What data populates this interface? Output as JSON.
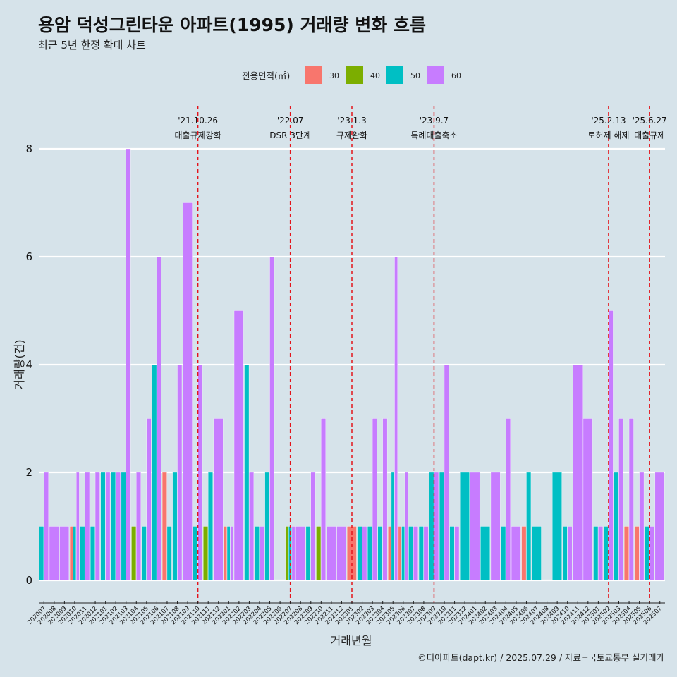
{
  "title": "용암 덕성그린타운 아파트(1995) 거래량 변화 흐름",
  "subtitle": "최근 5년 한정 확대 차트",
  "credit": "©디아파트(dapt.kr) / 2025.07.29 / 자료=국토교통부 실거래가",
  "chart_data": {
    "type": "bar",
    "stacking": "dodge",
    "title": "용암 덕성그린타운 아파트(1995) 거래량 변화 흐름",
    "xlabel": "거래년월",
    "ylabel": "거래량(건)",
    "ylim": [
      0,
      8
    ],
    "yticks": [
      0,
      2,
      4,
      6,
      8
    ],
    "legend": {
      "title": "전용면적(㎡)",
      "placement": "top",
      "entries": [
        {
          "name": "30",
          "color": "#f8766d"
        },
        {
          "name": "40",
          "color": "#7cae00"
        },
        {
          "name": "50",
          "color": "#00bfc4"
        },
        {
          "name": "60",
          "color": "#c77cff"
        }
      ]
    },
    "categories": [
      "202007",
      "202008",
      "202009",
      "202010",
      "202011",
      "202012",
      "202101",
      "202102",
      "202103",
      "202104",
      "202105",
      "202106",
      "202107",
      "202108",
      "202109",
      "202110",
      "202111",
      "202112",
      "202201",
      "202202",
      "202203",
      "202204",
      "202205",
      "202206",
      "202207",
      "202208",
      "202209",
      "202210",
      "202211",
      "202212",
      "202301",
      "202302",
      "202303",
      "202304",
      "202305",
      "202306",
      "202307",
      "202308",
      "202309",
      "202310",
      "202311",
      "202312",
      "202401",
      "202402",
      "202403",
      "202404",
      "202405",
      "202406",
      "202407",
      "202408",
      "202409",
      "202410",
      "202411",
      "202412",
      "202501",
      "202502",
      "202503",
      "202504",
      "202505",
      "202506",
      "202507"
    ],
    "series": [
      {
        "name": "30",
        "values": [
          0,
          0,
          0,
          1,
          0,
          0,
          0,
          0,
          0,
          0,
          0,
          0,
          2,
          0,
          0,
          0,
          0,
          0,
          1,
          0,
          0,
          0,
          0,
          0,
          0,
          0,
          0,
          0,
          0,
          0,
          1,
          0,
          0,
          0,
          1,
          1,
          0,
          0,
          0,
          0,
          0,
          0,
          0,
          0,
          0,
          0,
          0,
          1,
          0,
          0,
          0,
          0,
          0,
          0,
          0,
          0,
          0,
          1,
          1,
          0,
          0
        ]
      },
      {
        "name": "40",
        "values": [
          0,
          0,
          0,
          0,
          0,
          0,
          0,
          0,
          0,
          1,
          0,
          0,
          0,
          0,
          0,
          0,
          1,
          0,
          0,
          0,
          0,
          0,
          0,
          0,
          1,
          0,
          0,
          1,
          0,
          0,
          0,
          0,
          0,
          0,
          0,
          0,
          0,
          0,
          0,
          0,
          0,
          0,
          0,
          0,
          0,
          0,
          0,
          0,
          0,
          0,
          0,
          0,
          0,
          0,
          0,
          0,
          0,
          0,
          0,
          0,
          0
        ]
      },
      {
        "name": "50",
        "values": [
          1,
          0,
          0,
          1,
          1,
          1,
          2,
          2,
          2,
          0,
          1,
          4,
          1,
          2,
          0,
          1,
          2,
          0,
          1,
          0,
          4,
          1,
          2,
          0,
          1,
          0,
          1,
          0,
          0,
          0,
          0,
          1,
          1,
          1,
          2,
          1,
          1,
          1,
          2,
          2,
          1,
          2,
          0,
          1,
          0,
          1,
          0,
          2,
          1,
          0,
          2,
          1,
          0,
          0,
          1,
          1,
          2,
          0,
          0,
          1,
          0
        ]
      },
      {
        "name": "60",
        "values": [
          2,
          1,
          1,
          2,
          2,
          2,
          2,
          2,
          8,
          2,
          3,
          6,
          0,
          4,
          7,
          4,
          0,
          3,
          1,
          5,
          2,
          1,
          6,
          0,
          1,
          1,
          2,
          3,
          1,
          1,
          0,
          1,
          3,
          3,
          6,
          2,
          1,
          1,
          2,
          4,
          1,
          0,
          2,
          0,
          2,
          3,
          1,
          0,
          0,
          0,
          0,
          1,
          4,
          3,
          1,
          5,
          3,
          3,
          2,
          1,
          2
        ]
      }
    ],
    "events": [
      {
        "month": "202110",
        "date": "'21.10.26",
        "label": "대출규제강화"
      },
      {
        "month": "202207",
        "date": "'22.07",
        "label": "DSR 3단계"
      },
      {
        "month": "202301",
        "date": "'23.1.3",
        "label": "규제완화"
      },
      {
        "month": "202309",
        "date": "'23.9.7",
        "label": "특례대출축소"
      },
      {
        "month": "202502",
        "date": "'25.2.13",
        "label": "토허제 해제"
      },
      {
        "month": "202506",
        "date": "'25.6.27",
        "label": "대출규제"
      }
    ]
  }
}
